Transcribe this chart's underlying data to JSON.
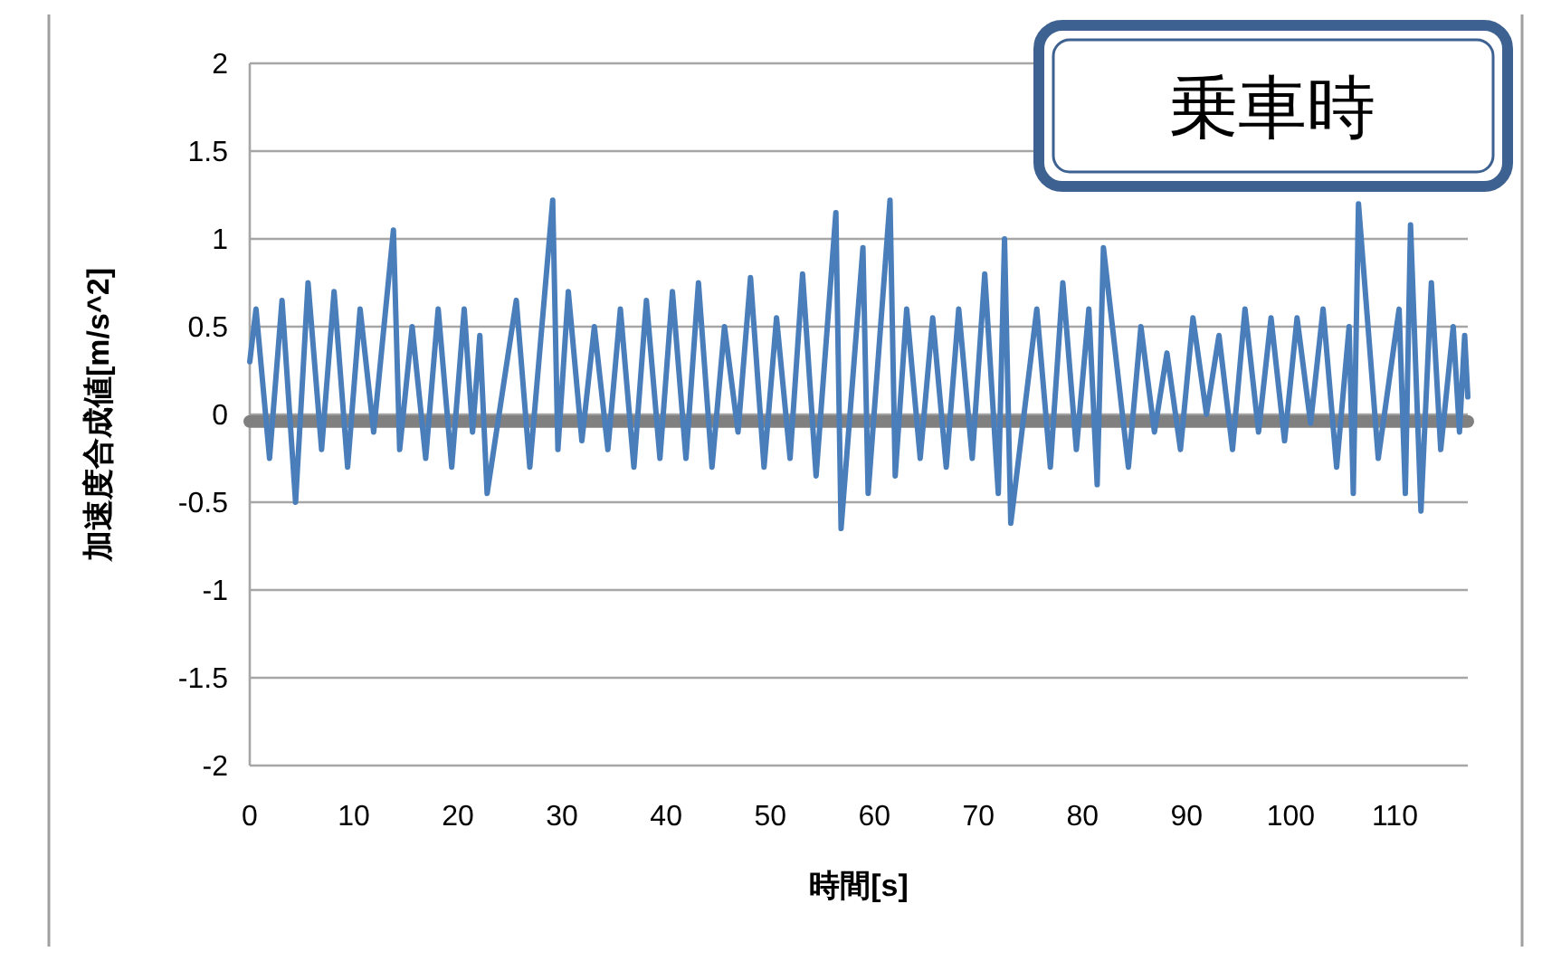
{
  "chart_data": {
    "type": "line",
    "title": "乗車時",
    "xlabel": "時間[s]",
    "ylabel": "加速度合成値[m/s^2]",
    "xlim": [
      0,
      117
    ],
    "ylim": [
      -2,
      2
    ],
    "xticks": [
      0,
      10,
      20,
      30,
      40,
      50,
      60,
      70,
      80,
      90,
      100,
      110
    ],
    "yticks": [
      -2,
      -1.5,
      -1,
      -0.5,
      0,
      0.5,
      1,
      1.5,
      2
    ],
    "grid": "y",
    "series": [
      {
        "color": "#808080",
        "x": [
          0,
          117
        ],
        "values": [
          -0.04,
          -0.04
        ]
      },
      {
        "color": "#4a7ebb",
        "x": [
          0,
          0.6,
          1.9,
          3.1,
          4.4,
          5.6,
          6.9,
          8.1,
          9.4,
          10.6,
          11.9,
          13.8,
          14.4,
          15.6,
          16.9,
          18.1,
          19.4,
          20.6,
          21.4,
          22.1,
          22.8,
          25.6,
          26.9,
          29.1,
          29.6,
          30.6,
          31.9,
          33.1,
          34.4,
          35.6,
          36.9,
          38.1,
          39.4,
          40.6,
          41.9,
          43.1,
          44.4,
          45.6,
          46.9,
          48.1,
          49.4,
          50.6,
          51.9,
          53.1,
          54.4,
          56.3,
          56.8,
          58.9,
          59.4,
          61.5,
          62.0,
          63.1,
          64.4,
          65.6,
          66.9,
          68.1,
          69.4,
          70.6,
          71.9,
          72.5,
          73.1,
          75.6,
          76.9,
          78.1,
          79.4,
          80.6,
          81.4,
          82.0,
          84.4,
          85.6,
          86.9,
          88.1,
          89.4,
          90.6,
          91.9,
          93.1,
          94.4,
          95.6,
          96.9,
          98.1,
          99.4,
          100.6,
          101.9,
          103.1,
          104.4,
          105.6,
          106.0,
          106.5,
          108.4,
          110.4,
          111.0,
          111.5,
          112.5,
          113.5,
          114.4,
          115.6,
          116.2,
          116.7,
          117
        ],
        "values": [
          0.3,
          0.6,
          -0.25,
          0.65,
          -0.5,
          0.75,
          -0.2,
          0.7,
          -0.3,
          0.6,
          -0.1,
          1.05,
          -0.2,
          0.5,
          -0.25,
          0.6,
          -0.3,
          0.6,
          -0.1,
          0.45,
          -0.45,
          0.65,
          -0.3,
          1.22,
          -0.2,
          0.7,
          -0.15,
          0.5,
          -0.2,
          0.6,
          -0.3,
          0.65,
          -0.25,
          0.7,
          -0.25,
          0.75,
          -0.3,
          0.5,
          -0.1,
          0.78,
          -0.3,
          0.55,
          -0.25,
          0.8,
          -0.35,
          1.15,
          -0.65,
          0.95,
          -0.45,
          1.22,
          -0.35,
          0.6,
          -0.25,
          0.55,
          -0.3,
          0.6,
          -0.25,
          0.8,
          -0.45,
          1.0,
          -0.62,
          0.6,
          -0.3,
          0.75,
          -0.2,
          0.6,
          -0.4,
          0.95,
          -0.3,
          0.5,
          -0.1,
          0.35,
          -0.2,
          0.55,
          0.0,
          0.45,
          -0.2,
          0.6,
          -0.1,
          0.55,
          -0.15,
          0.55,
          -0.05,
          0.6,
          -0.3,
          0.5,
          -0.45,
          1.2,
          -0.25,
          0.6,
          -0.45,
          1.08,
          -0.55,
          0.75,
          -0.2,
          0.5,
          -0.1,
          0.45,
          0.1
        ]
      }
    ]
  }
}
